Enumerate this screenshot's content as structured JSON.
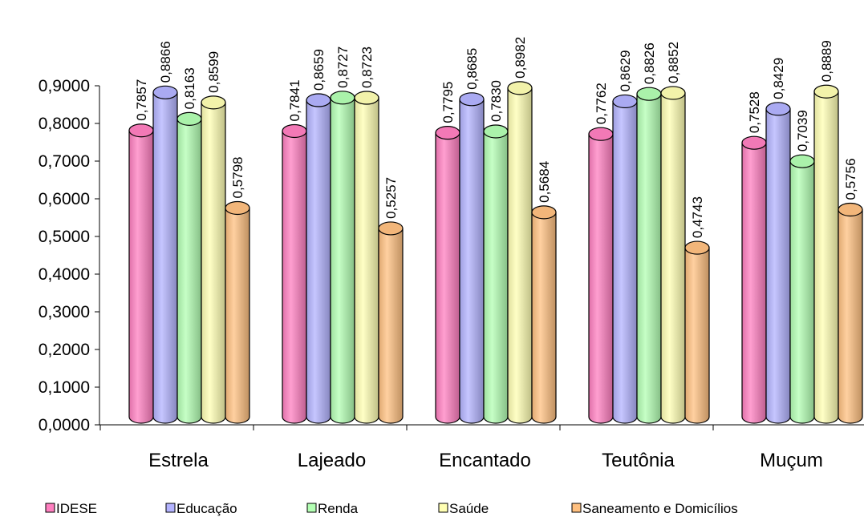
{
  "chart_data": {
    "type": "bar",
    "categories": [
      "Estrela",
      "Lajeado",
      "Encantado",
      "Teutônia",
      "Muçum"
    ],
    "series": [
      {
        "name": "IDESE",
        "color": "#ff7fc0",
        "values": [
          0.7857,
          0.7841,
          0.7795,
          0.7762,
          0.7528
        ],
        "labels": [
          "0,7857",
          "0,7841",
          "0,7795",
          "0,7762",
          "0,7528"
        ]
      },
      {
        "name": "Educação",
        "color": "#b3b3ff",
        "values": [
          0.8866,
          0.8659,
          0.8685,
          0.8629,
          0.8429
        ],
        "labels": [
          "0,8866",
          "0,8659",
          "0,8685",
          "0,8629",
          "0,8429"
        ]
      },
      {
        "name": "Renda",
        "color": "#b3ffb3",
        "values": [
          0.8163,
          0.8727,
          0.783,
          0.8826,
          0.7039
        ],
        "labels": [
          "0,8163",
          "0,8727",
          "0,7830",
          "0,8826",
          "0,7039"
        ]
      },
      {
        "name": "Saúde",
        "color": "#ffffb3",
        "values": [
          0.8599,
          0.8723,
          0.8982,
          0.8852,
          0.8889
        ],
        "labels": [
          "0,8599",
          "0,8723",
          "0,8982",
          "0,8852",
          "0,8889"
        ]
      },
      {
        "name": "Saneamento e Domicílios",
        "color": "#ffc080",
        "values": [
          0.5798,
          0.5257,
          0.5684,
          0.4743,
          0.5756
        ],
        "labels": [
          "0,5798",
          "0,5257",
          "0,5684",
          "0,4743",
          "0,5756"
        ]
      }
    ],
    "yticks": [
      "0,0000",
      "0,1000",
      "0,2000",
      "0,3000",
      "0,4000",
      "0,5000",
      "0,6000",
      "0,7000",
      "0,8000",
      "0,9000"
    ],
    "ylim": [
      0,
      0.9
    ],
    "title": "",
    "xlabel": "",
    "ylabel": "",
    "legend_position": "bottom",
    "grid": false
  }
}
